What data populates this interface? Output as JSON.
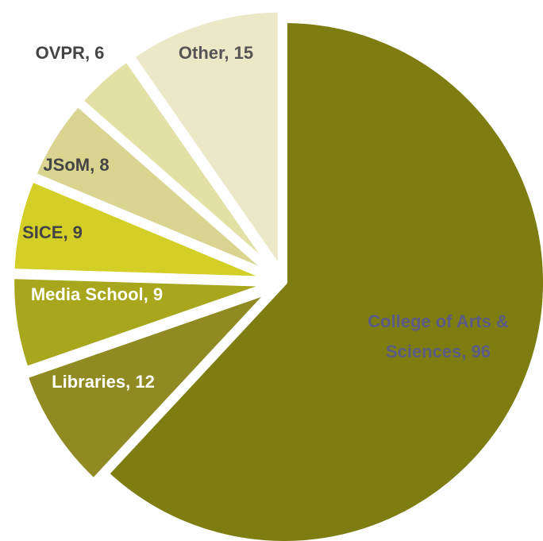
{
  "chart_data": {
    "type": "pie",
    "slices": [
      {
        "label": "College of Arts & Sciences",
        "value": 96,
        "color": "#7e7d12",
        "text_color": "#5b5b86",
        "text_lines": [
          "College of Arts &",
          "Sciences, 96"
        ]
      },
      {
        "label": "Libraries",
        "value": 12,
        "color": "#8f8b22",
        "text_color": "#ffffff",
        "text_lines": [
          "Libraries, 12"
        ]
      },
      {
        "label": "Media School",
        "value": 9,
        "color": "#a8a61d",
        "text_color": "#ffffff",
        "text_lines": [
          "Media School, 9"
        ]
      },
      {
        "label": "SICE",
        "value": 9,
        "color": "#d4cf26",
        "text_color": "#444444",
        "text_lines": [
          "SICE, 9"
        ]
      },
      {
        "label": "JSoM",
        "value": 8,
        "color": "#d9d490",
        "text_color": "#444444",
        "text_lines": [
          "JSoM, 8"
        ]
      },
      {
        "label": "OVPR",
        "value": 6,
        "color": "#e3e0a6",
        "text_color": "#444444",
        "text_lines": [
          "OVPR, 6"
        ]
      },
      {
        "label": "Other",
        "value": 15,
        "color": "#ebe8c8",
        "text_color": "#555555",
        "text_lines": [
          "Other, 15"
        ]
      }
    ]
  }
}
